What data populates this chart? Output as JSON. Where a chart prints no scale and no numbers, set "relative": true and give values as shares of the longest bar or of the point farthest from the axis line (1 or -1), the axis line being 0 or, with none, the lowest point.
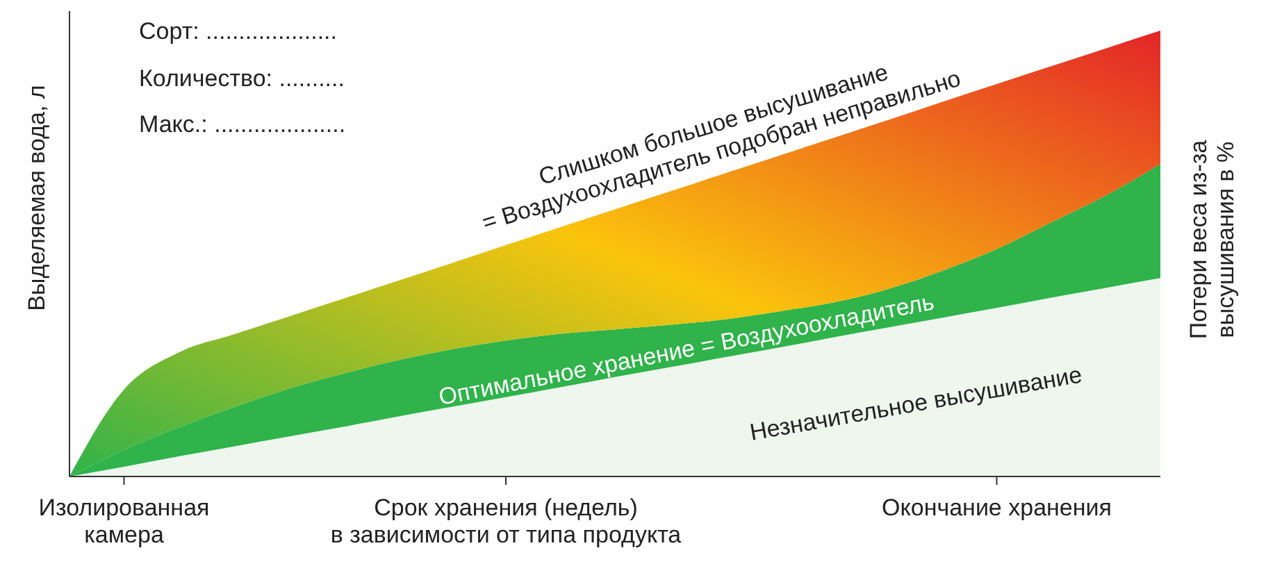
{
  "chart_data": {
    "type": "area",
    "relative": true,
    "stacked": true,
    "ylabel": "Выделяемая вода, л",
    "y2label": "Потери веса из-за\nвысушивания в %",
    "categories": [
      null,
      "Изолированная\nкамера",
      null,
      null,
      null,
      null,
      null,
      null,
      "Срок хранения (недель)\nв зависимости от типа продукта",
      null,
      null,
      null,
      null,
      null,
      null,
      null,
      null,
      "Окончание хранения",
      null,
      null,
      null
    ],
    "series": [
      {
        "color": "#eef6ee",
        "values": [
          0,
          0.022,
          0.045,
          0.067,
          0.089,
          0.111,
          0.134,
          0.156,
          0.178,
          0.2,
          0.223,
          0.245,
          0.267,
          0.289,
          0.312,
          0.334,
          0.356,
          0.378,
          0.401,
          0.423,
          0.445
        ]
      },
      {
        "color": "#2fb34a",
        "values": [
          0,
          0.038,
          0.065,
          0.088,
          0.107,
          0.119,
          0.126,
          0.129,
          0.127,
          0.12,
          0.107,
          0.095,
          0.085,
          0.081,
          0.078,
          0.086,
          0.105,
          0.132,
          0.169,
          0.207,
          0.256
        ]
      },
      {
        "color": "#f29a1f",
        "values": [
          0,
          0.135,
          0.168,
          0.163,
          0.162,
          0.168,
          0.178,
          0.193,
          0.214,
          0.239,
          0.269,
          0.299,
          0.327,
          0.349,
          0.369,
          0.379,
          0.379,
          0.37,
          0.35,
          0.33,
          0.299
        ]
      }
    ],
    "annotations": [
      "Сорт: ....................",
      "Количество: ..........",
      "Макс.: ....................",
      "Слишком большое высушивание\n= Воздухоохладитель подобран неправильно",
      "Оптимальное хранение = Воздухоохладитель",
      "Незначительное высушивание"
    ]
  }
}
